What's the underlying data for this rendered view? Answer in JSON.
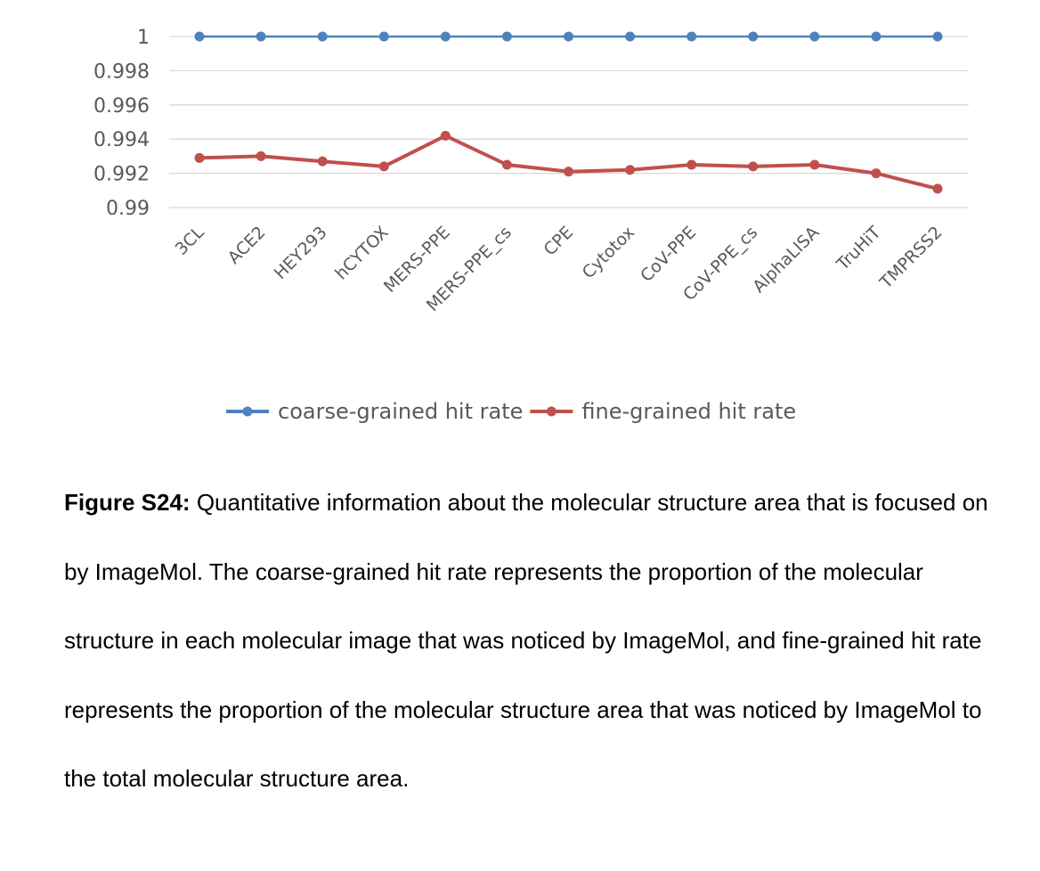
{
  "chart_data": {
    "type": "line",
    "title": "",
    "xlabel": "",
    "ylabel": "",
    "ylim": [
      0.99,
      1.0
    ],
    "yticks": [
      "1",
      "0.998",
      "0.996",
      "0.994",
      "0.992",
      "0.99"
    ],
    "grid": true,
    "legend_position": "bottom",
    "categories": [
      "3CL",
      "ACE2",
      "HEY293",
      "hCYTOX",
      "MERS-PPE",
      "MERS-PPE_cs",
      "CPE",
      "Cytotox",
      "CoV-PPE",
      "CoV-PPE_cs",
      "AlphaLISA",
      "TruHiT",
      "TMPRSS2"
    ],
    "series": [
      {
        "name": "coarse-grained hit rate",
        "color": "#4F81BD",
        "values": [
          1,
          1,
          1,
          1,
          1,
          1,
          1,
          1,
          1,
          1,
          1,
          1,
          1
        ]
      },
      {
        "name": "fine-grained hit rate",
        "color": "#C0504D",
        "values": [
          0.9929,
          0.993,
          0.9927,
          0.9924,
          0.9942,
          0.9925,
          0.9921,
          0.9922,
          0.9925,
          0.9924,
          0.9925,
          0.992,
          0.9911
        ]
      }
    ]
  },
  "caption": {
    "label": "Figure S24:",
    "text": " Quantitative information about the molecular structure area that is focused on by ImageMol. The coarse-grained hit rate represents the proportion of the molecular structure in each molecular image that was noticed by ImageMol, and fine-grained hit rate represents the proportion of the molecular structure area that was noticed by ImageMol to the total molecular structure area."
  }
}
